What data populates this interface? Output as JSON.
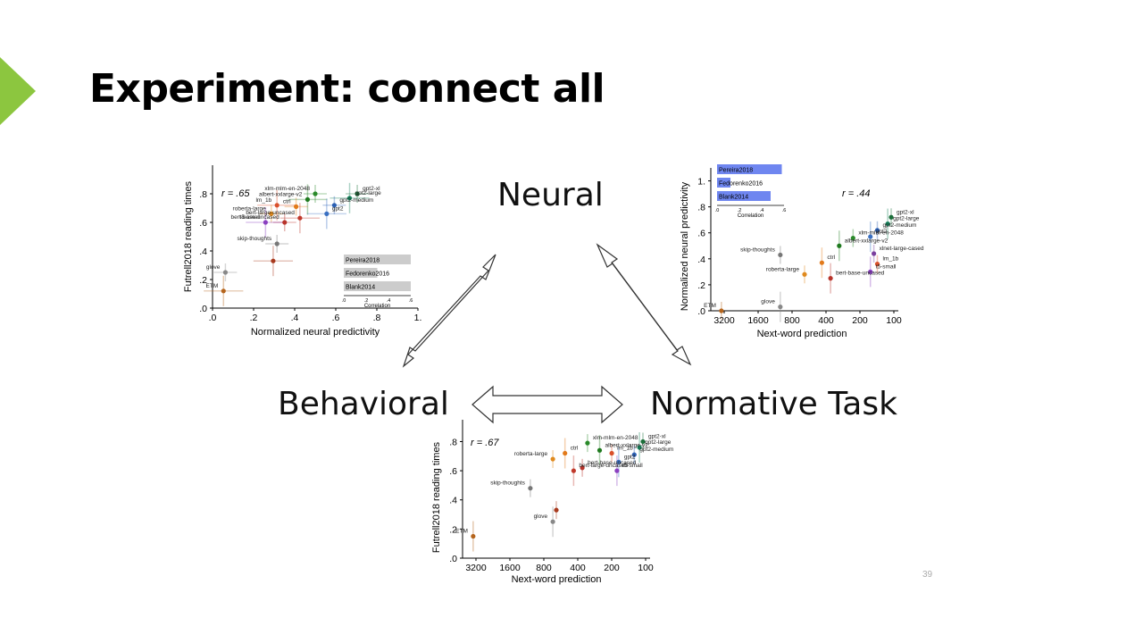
{
  "slide": {
    "title": "Experiment: connect all",
    "page_number": "39",
    "accent_color": "#8cc63f"
  },
  "nodes": {
    "neural": "Neural",
    "behavioral": "Behavioral",
    "normative": "Normative Task"
  },
  "arrows": [
    "neural-behavioral",
    "neural-normative",
    "behavioral-normative"
  ],
  "chart_data": [
    {
      "type": "scatter",
      "r_label": "r = .65",
      "xlabel": "Normalized neural predictivity",
      "ylabel": "Futrell2018 reading times",
      "xticks": [
        ".0",
        ".2",
        ".4",
        ".6",
        ".8",
        "1."
      ],
      "yticks": [
        ".0",
        ".2",
        ".4",
        ".6",
        ".8"
      ],
      "xlim": [
        0,
        1
      ],
      "ylim": [
        0,
        1
      ],
      "points": [
        {
          "name": "gpt2-xl",
          "x": 0.72,
          "y": 0.8,
          "color": "#1b6f3a"
        },
        {
          "name": "gpt2-large",
          "x": 0.68,
          "y": 0.77,
          "color": "#15805a"
        },
        {
          "name": "xlm-mlm-en-2048",
          "x": 0.5,
          "y": 0.8,
          "color": "#2a8a2a"
        },
        {
          "name": "albert-xxlarge-v2",
          "x": 0.46,
          "y": 0.76,
          "color": "#1f7a1f"
        },
        {
          "name": "gpt2-medium",
          "x": 0.6,
          "y": 0.72,
          "color": "#2b5fb3"
        },
        {
          "name": "gpt2",
          "x": 0.56,
          "y": 0.66,
          "color": "#3a70c2"
        },
        {
          "name": "ctrl",
          "x": 0.4,
          "y": 0.71,
          "color": "#e27a1a"
        },
        {
          "name": "lm_1b",
          "x": 0.3,
          "y": 0.72,
          "color": "#d9502b"
        },
        {
          "name": "roberta-large",
          "x": 0.27,
          "y": 0.66,
          "color": "#e08a1e"
        },
        {
          "name": "bert-large-uncased",
          "x": 0.42,
          "y": 0.63,
          "color": "#c0392b"
        },
        {
          "name": "bert-base-uncased",
          "x": 0.34,
          "y": 0.6,
          "color": "#b8332a"
        },
        {
          "name": "t5-small",
          "x": 0.24,
          "y": 0.6,
          "color": "#8a3fc0"
        },
        {
          "name": "skip-thoughts",
          "x": 0.3,
          "y": 0.45,
          "color": "#777777"
        },
        {
          "name": "",
          "x": 0.28,
          "y": 0.33,
          "color": "#a83a1e"
        },
        {
          "name": "glove",
          "x": 0.03,
          "y": 0.25,
          "color": "#888888"
        },
        {
          "name": "ETM",
          "x": 0.02,
          "y": 0.12,
          "color": "#b5651d"
        }
      ],
      "inset": {
        "bars": [
          {
            "name": "Pereira2018",
            "value": 0.6
          },
          {
            "name": "Fedorenko2016",
            "value": 0.3
          },
          {
            "name": "Blank2014",
            "value": 0.6
          }
        ],
        "xticks": [
          ".0",
          ".2",
          ".4",
          ".6"
        ],
        "xlabel": "Correlation",
        "bar_color": "#cccccc"
      }
    },
    {
      "type": "scatter",
      "r_label": "r = .44",
      "xlabel": "Next-word prediction",
      "ylabel": "Normalized neural predictivity",
      "xticks": [
        "3200",
        "1600",
        "800",
        "400",
        "200",
        "100"
      ],
      "yticks": [
        ".0",
        ".2",
        ".4",
        ".6",
        ".8",
        "1."
      ],
      "points": [
        {
          "name": "gpt2-xl",
          "x": 1.0,
          "y": 0.72,
          "color": "#1b6f3a"
        },
        {
          "name": "gpt2-large",
          "x": 0.98,
          "y": 0.67,
          "color": "#15805a"
        },
        {
          "name": "gpt2-medium",
          "x": 0.92,
          "y": 0.62,
          "color": "#2b5fb3"
        },
        {
          "name": "gpt2",
          "x": 0.88,
          "y": 0.57,
          "color": "#3a70c2"
        },
        {
          "name": "xlm-mlm-en-2048",
          "x": 0.78,
          "y": 0.56,
          "color": "#2a8a2a"
        },
        {
          "name": "albert-xxlarge-v2",
          "x": 0.7,
          "y": 0.5,
          "color": "#1f7a1f"
        },
        {
          "name": "xlnet-large-cased",
          "x": 0.9,
          "y": 0.44,
          "color": "#7a3f9e"
        },
        {
          "name": "ctrl",
          "x": 0.6,
          "y": 0.37,
          "color": "#e27a1a"
        },
        {
          "name": "lm_1b",
          "x": 0.92,
          "y": 0.36,
          "color": "#d9502b"
        },
        {
          "name": "t5-small",
          "x": 0.88,
          "y": 0.3,
          "color": "#8a3fc0"
        },
        {
          "name": "roberta-large",
          "x": 0.5,
          "y": 0.28,
          "color": "#e08a1e"
        },
        {
          "name": "bert-base-uncased",
          "x": 0.65,
          "y": 0.25,
          "color": "#b8332a"
        },
        {
          "name": "skip-thoughts",
          "x": 0.36,
          "y": 0.43,
          "color": "#777777"
        },
        {
          "name": "glove",
          "x": 0.36,
          "y": 0.03,
          "color": "#888888"
        },
        {
          "name": "ETM",
          "x": 0.02,
          "y": 0.0,
          "color": "#b5651d"
        }
      ],
      "inset": {
        "bars": [
          {
            "name": "Pereira2018",
            "value": 0.58
          },
          {
            "name": "Fedorenko2016",
            "value": 0.12
          },
          {
            "name": "Blank2014",
            "value": 0.48
          }
        ],
        "xticks": [
          ".0",
          ".2",
          ".4",
          ".6"
        ],
        "xlabel": "Correlation",
        "bar_color": "#6f86f0"
      }
    },
    {
      "type": "scatter",
      "r_label": "r = .67",
      "xlabel": "Next-word prediction",
      "ylabel": "Futrell2018 reading times",
      "xticks": [
        "3200",
        "1600",
        "800",
        "400",
        "200",
        "100"
      ],
      "yticks": [
        ".0",
        ".2",
        ".4",
        ".6",
        ".8"
      ],
      "points": [
        {
          "name": "gpt2-xl",
          "x": 1.0,
          "y": 0.8,
          "color": "#1b6f3a"
        },
        {
          "name": "gpt2-large",
          "x": 0.98,
          "y": 0.76,
          "color": "#15805a"
        },
        {
          "name": "gpt2-medium",
          "x": 0.95,
          "y": 0.71,
          "color": "#2b5fb3"
        },
        {
          "name": "gpt2",
          "x": 0.86,
          "y": 0.66,
          "color": "#3a70c2"
        },
        {
          "name": "xlm-mlm-en-2048",
          "x": 0.68,
          "y": 0.79,
          "color": "#2a8a2a"
        },
        {
          "name": "albert-xxlarge-v2",
          "x": 0.75,
          "y": 0.74,
          "color": "#1f7a1f"
        },
        {
          "name": "lm_1b",
          "x": 0.82,
          "y": 0.72,
          "color": "#d9502b"
        },
        {
          "name": "ctrl",
          "x": 0.55,
          "y": 0.72,
          "color": "#e27a1a"
        },
        {
          "name": "roberta-large",
          "x": 0.48,
          "y": 0.68,
          "color": "#e08a1e"
        },
        {
          "name": "t5-small",
          "x": 0.85,
          "y": 0.6,
          "color": "#8a3fc0"
        },
        {
          "name": "bert-base-uncased",
          "x": 0.65,
          "y": 0.62,
          "color": "#b8332a"
        },
        {
          "name": "bert-large-uncased",
          "x": 0.6,
          "y": 0.6,
          "color": "#c0392b"
        },
        {
          "name": "skip-thoughts",
          "x": 0.35,
          "y": 0.48,
          "color": "#777777"
        },
        {
          "name": "glove",
          "x": 0.48,
          "y": 0.25,
          "color": "#888888"
        },
        {
          "name": "",
          "x": 0.5,
          "y": 0.33,
          "color": "#a83a1e"
        },
        {
          "name": "ETM",
          "x": 0.02,
          "y": 0.15,
          "color": "#b5651d"
        }
      ]
    }
  ]
}
